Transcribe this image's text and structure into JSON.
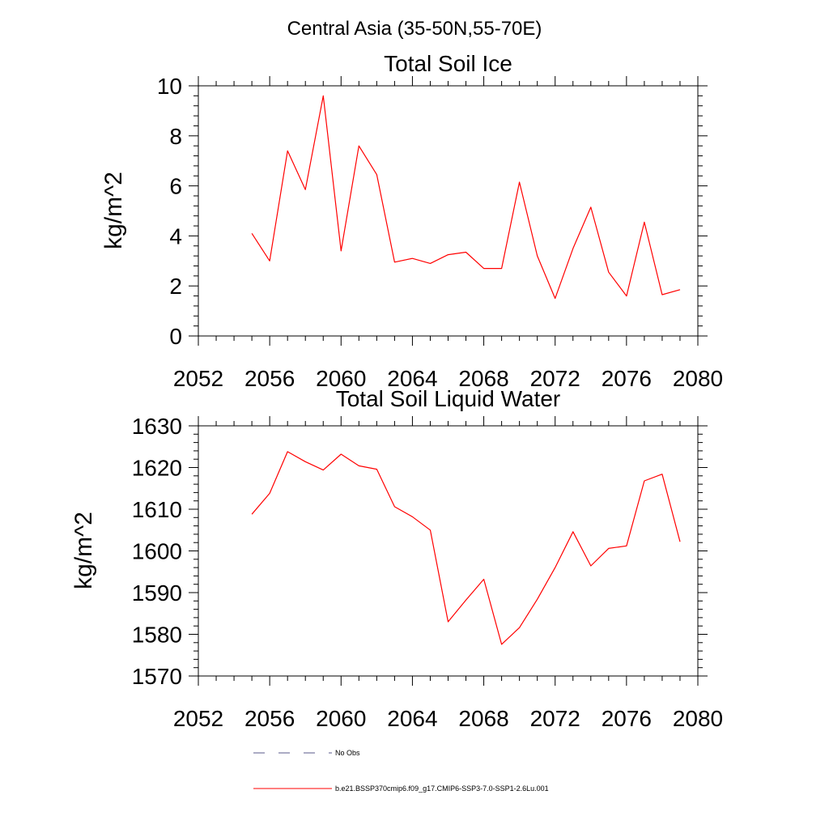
{
  "figure": {
    "title": "Central Asia (35-50N,55-70E)"
  },
  "colors": {
    "series": "#ff0000",
    "no_obs": "#5a5a8a",
    "axis": "#000000"
  },
  "chart_data": [
    {
      "type": "line",
      "title": "Total Soil Ice",
      "xlabel": "",
      "ylabel": "kg/m^2",
      "xlim": [
        2052,
        2080
      ],
      "ylim": [
        0,
        10
      ],
      "xticks": [
        2052,
        2056,
        2060,
        2064,
        2068,
        2072,
        2076,
        2080
      ],
      "yticks": [
        0,
        2,
        4,
        6,
        8,
        10
      ],
      "grid": false,
      "series": [
        {
          "name": "b.e21.BSSP370cmip6.f09_g17.CMIP6-SSP3-7.0-SSP1-2.6Lu.001",
          "color": "#ff0000",
          "x": [
            2055,
            2056,
            2057,
            2058,
            2059,
            2060,
            2061,
            2062,
            2063,
            2064,
            2065,
            2066,
            2067,
            2068,
            2069,
            2070,
            2071,
            2072,
            2073,
            2074,
            2075,
            2076,
            2077,
            2078,
            2079
          ],
          "y": [
            4.1,
            3.0,
            7.4,
            5.85,
            9.6,
            3.4,
            7.6,
            6.45,
            2.95,
            3.1,
            2.9,
            3.25,
            3.35,
            2.7,
            2.7,
            6.15,
            3.2,
            1.5,
            3.5,
            5.15,
            2.55,
            1.6,
            4.55,
            1.65,
            1.85
          ]
        }
      ]
    },
    {
      "type": "line",
      "title": "Total Soil Liquid Water",
      "xlabel": "",
      "ylabel": "kg/m^2",
      "xlim": [
        2052,
        2080
      ],
      "ylim": [
        1570,
        1630
      ],
      "xticks": [
        2052,
        2056,
        2060,
        2064,
        2068,
        2072,
        2076,
        2080
      ],
      "yticks": [
        1570,
        1580,
        1590,
        1600,
        1610,
        1620,
        1630
      ],
      "grid": false,
      "series": [
        {
          "name": "b.e21.BSSP370cmip6.f09_g17.CMIP6-SSP3-7.0-SSP1-2.6Lu.001",
          "color": "#ff0000",
          "x": [
            2055,
            2056,
            2057,
            2058,
            2059,
            2060,
            2061,
            2062,
            2063,
            2064,
            2065,
            2066,
            2067,
            2068,
            2069,
            2070,
            2071,
            2072,
            2073,
            2074,
            2075,
            2076,
            2077,
            2078,
            2079
          ],
          "y": [
            1608.8,
            1613.8,
            1623.8,
            1621.4,
            1619.4,
            1623.2,
            1620.4,
            1619.6,
            1610.6,
            1608.2,
            1605.0,
            1583.0,
            1588.2,
            1593.2,
            1577.6,
            1581.6,
            1588.4,
            1596.0,
            1604.6,
            1596.4,
            1600.6,
            1601.2,
            1616.8,
            1618.4,
            1602.2
          ]
        }
      ]
    }
  ],
  "legend": {
    "placement": "bottom",
    "items": [
      {
        "label": "No Obs",
        "style": "dashed",
        "color": "#5a5a8a"
      },
      {
        "label": "b.e21.BSSP370cmip6.f09_g17.CMIP6-SSP3-7.0-SSP1-2.6Lu.001",
        "style": "solid",
        "color": "#ff0000"
      }
    ]
  }
}
